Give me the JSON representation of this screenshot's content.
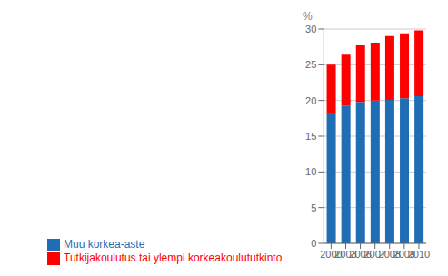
{
  "chart_data": {
    "type": "bar",
    "stacked": true,
    "grid": true,
    "legend": "bottom",
    "ylabel": "%",
    "categories": [
      "2000",
      "2003",
      "2006",
      "2007",
      "2008",
      "2009",
      "2010"
    ],
    "series": [
      {
        "name": "Muu korkea-aste",
        "color": "#1F6DB5",
        "values": [
          18.3,
          19.3,
          19.8,
          20.0,
          20.1,
          20.3,
          20.6
        ]
      },
      {
        "name": "Tutkijakoulutus tai ylempi korkeakoulututkinto",
        "color": "#FF0000",
        "values": [
          6.7,
          7.1,
          7.9,
          8.1,
          8.9,
          9.1,
          9.2
        ]
      }
    ],
    "ylim": [
      0,
      30
    ],
    "yticks": [
      0,
      5,
      10,
      15,
      20,
      25,
      30
    ]
  }
}
